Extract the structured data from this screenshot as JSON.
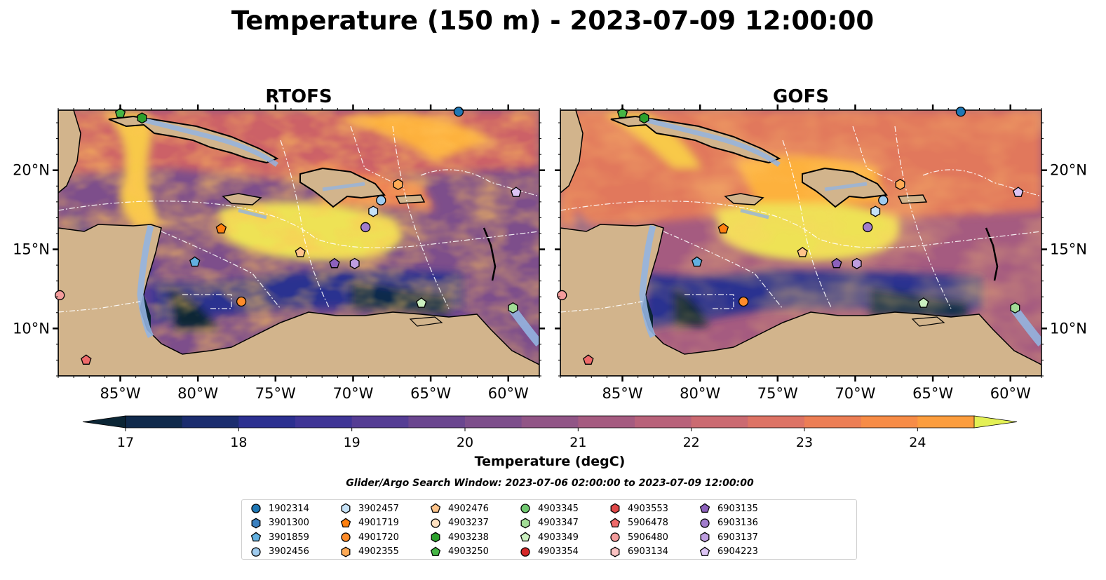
{
  "figure": {
    "title": "Temperature (150 m) - 2023-07-09 12:00:00",
    "subtitle": "Glider/Argo Search Window: 2023-07-06 02:00:00 to 2023-07-09 12:00:00"
  },
  "panels": [
    {
      "title": "RTOFS"
    },
    {
      "title": "GOFS"
    }
  ],
  "axes": {
    "x_ticks": [
      "85°W",
      "80°W",
      "75°W",
      "70°W",
      "65°W",
      "60°W"
    ],
    "x_values": [
      -85,
      -80,
      -75,
      -70,
      -65,
      -60
    ],
    "y_ticks": [
      "20°N",
      "15°N",
      "10°N"
    ],
    "y_values": [
      20,
      15,
      10
    ],
    "lon_range": [
      -89,
      -58
    ],
    "lat_range": [
      7,
      23.8
    ]
  },
  "colorbar": {
    "label": "Temperature (degC)",
    "ticks": [
      "17",
      "18",
      "19",
      "20",
      "21",
      "22",
      "23",
      "24"
    ],
    "tick_values": [
      17,
      18,
      19,
      20,
      21,
      22,
      23,
      24
    ],
    "range": [
      17,
      24.5
    ],
    "step": 0.5,
    "extend": "both",
    "colors": [
      "#0b2535",
      "#102a4c",
      "#1b2d6e",
      "#2c3090",
      "#3f3596",
      "#553d94",
      "#6a468f",
      "#7d4e8b",
      "#915586",
      "#a55b80",
      "#b8627a",
      "#cb6a71",
      "#dd7365",
      "#ec7e55",
      "#f78c47",
      "#fc9d3e",
      "#fdb13e",
      "#f8c949",
      "#eee255",
      "#e3f055"
    ]
  },
  "colors": {
    "land": "#d2b48c",
    "shelf": "#94b4e0",
    "coast": "#000000",
    "eez": "#ffffff"
  },
  "legend": {
    "columns": 7,
    "items": [
      {
        "id": "1902314",
        "shape": "circle",
        "color": "#1f77b4"
      },
      {
        "id": "3901300",
        "shape": "hexagon",
        "color": "#3a80c0"
      },
      {
        "id": "3901859",
        "shape": "pentagon",
        "color": "#62b0e0"
      },
      {
        "id": "3902456",
        "shape": "circle",
        "color": "#9fcbee"
      },
      {
        "id": "3902457",
        "shape": "hexagon",
        "color": "#c6e2f7"
      },
      {
        "id": "4901719",
        "shape": "pentagon",
        "color": "#ff7f0e"
      },
      {
        "id": "4901720",
        "shape": "circle",
        "color": "#ff8c2a"
      },
      {
        "id": "4902355",
        "shape": "hexagon",
        "color": "#ffaa55"
      },
      {
        "id": "4902476",
        "shape": "pentagon",
        "color": "#ffc48a"
      },
      {
        "id": "4903237",
        "shape": "circle",
        "color": "#ffe0c0"
      },
      {
        "id": "4903238",
        "shape": "hexagon",
        "color": "#2ca02c"
      },
      {
        "id": "4903250",
        "shape": "pentagon",
        "color": "#45b545"
      },
      {
        "id": "4903345",
        "shape": "circle",
        "color": "#70c870"
      },
      {
        "id": "4903347",
        "shape": "hexagon",
        "color": "#a2dc96"
      },
      {
        "id": "4903349",
        "shape": "pentagon",
        "color": "#cbf0c0"
      },
      {
        "id": "4903354",
        "shape": "circle",
        "color": "#d62728"
      },
      {
        "id": "4903553",
        "shape": "hexagon",
        "color": "#e04848"
      },
      {
        "id": "5906478",
        "shape": "pentagon",
        "color": "#ee6a6a"
      },
      {
        "id": "5906480",
        "shape": "circle",
        "color": "#f49c9c"
      },
      {
        "id": "6903134",
        "shape": "hexagon",
        "color": "#fac2c2"
      },
      {
        "id": "6903135",
        "shape": "pentagon",
        "color": "#8c61bc"
      },
      {
        "id": "6903136",
        "shape": "circle",
        "color": "#a17ccc"
      },
      {
        "id": "6903137",
        "shape": "hexagon",
        "color": "#be9ee0"
      },
      {
        "id": "6904223",
        "shape": "pentagon",
        "color": "#dcc4f4"
      }
    ]
  },
  "markers": [
    {
      "id": "1902314",
      "lon": -63.2,
      "lat": 23.7
    },
    {
      "id": "4903238",
      "lon": -83.6,
      "lat": 23.3
    },
    {
      "id": "4903250",
      "lon": -85.0,
      "lat": 23.6
    },
    {
      "id": "4901719",
      "lon": -78.5,
      "lat": 16.3
    },
    {
      "id": "3901859",
      "lon": -80.2,
      "lat": 14.2
    },
    {
      "id": "4902476",
      "lon": -73.4,
      "lat": 14.8
    },
    {
      "id": "6903135",
      "lon": -71.2,
      "lat": 14.1
    },
    {
      "id": "6903137",
      "lon": -69.9,
      "lat": 14.1
    },
    {
      "id": "6903136",
      "lon": -69.2,
      "lat": 16.4
    },
    {
      "id": "3902456",
      "lon": -68.2,
      "lat": 18.1
    },
    {
      "id": "3902457",
      "lon": -68.7,
      "lat": 17.4
    },
    {
      "id": "4902355",
      "lon": -67.1,
      "lat": 19.1
    },
    {
      "id": "4901720",
      "lon": -77.2,
      "lat": 11.7
    },
    {
      "id": "4903349",
      "lon": -65.6,
      "lat": 11.6
    },
    {
      "id": "4903347",
      "lon": -59.7,
      "lat": 11.3
    },
    {
      "id": "6904223",
      "lon": -59.5,
      "lat": 18.6
    },
    {
      "id": "5906480",
      "lon": -88.9,
      "lat": 12.1
    },
    {
      "id": "5906478",
      "lon": -87.2,
      "lat": 8.0
    }
  ]
}
